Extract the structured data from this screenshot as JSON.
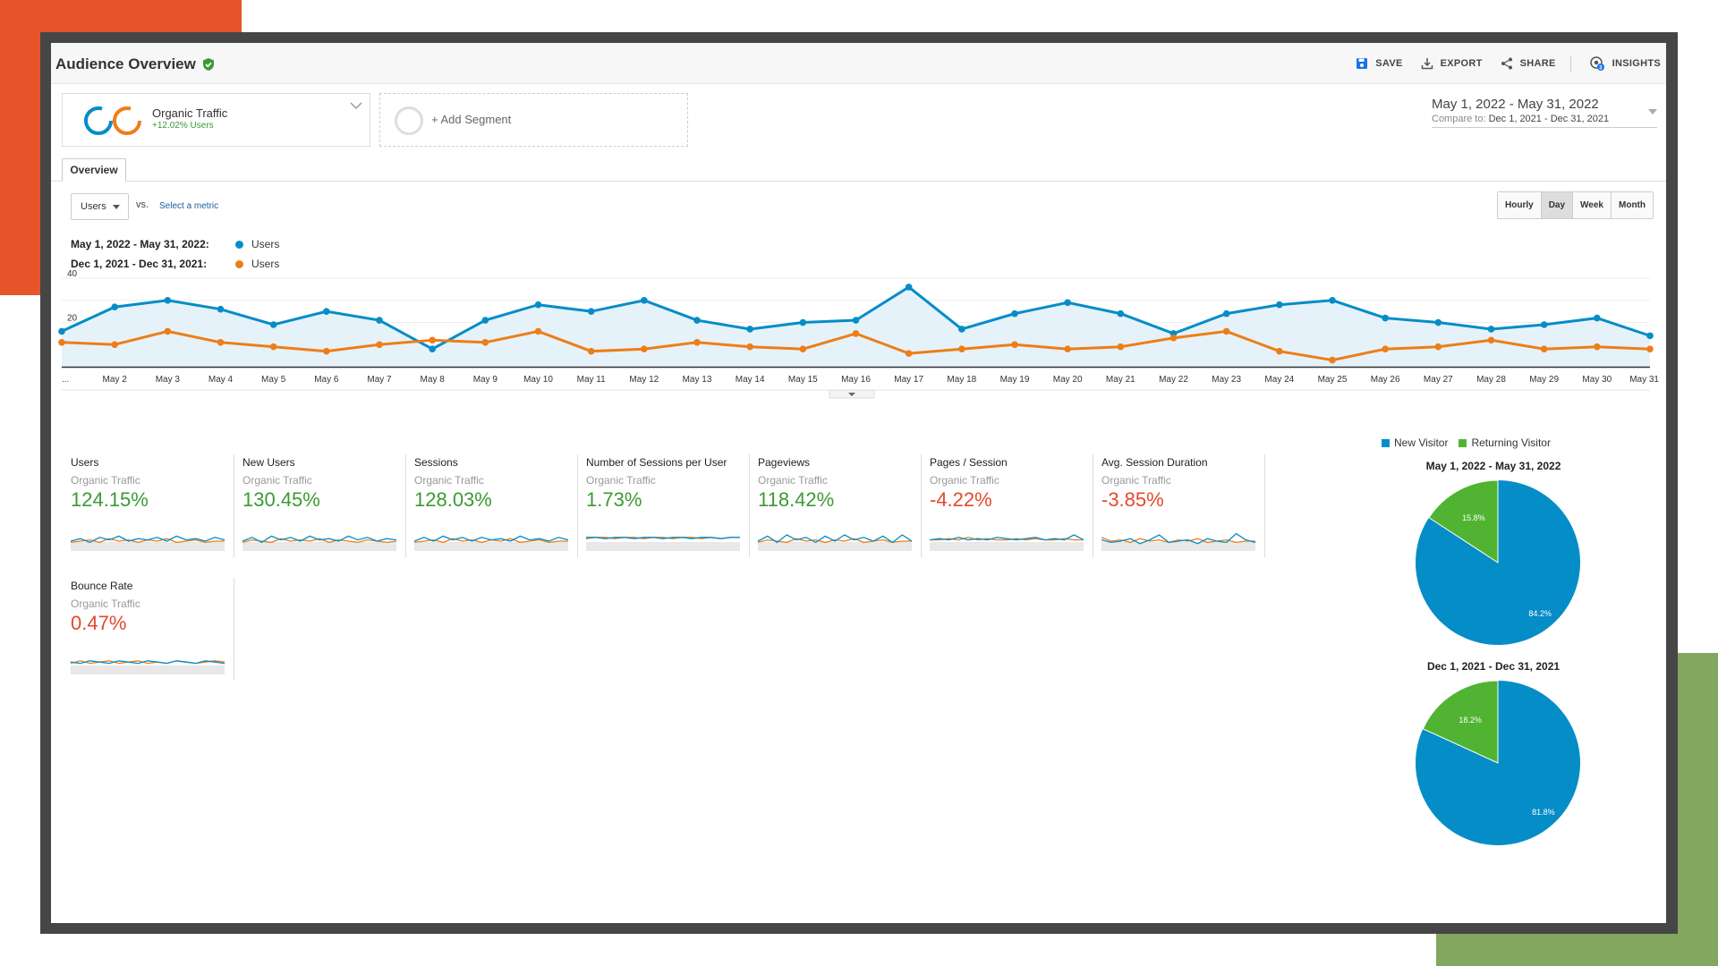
{
  "header": {
    "title": "Audience Overview",
    "actions": {
      "save": "SAVE",
      "export": "EXPORT",
      "share": "SHARE",
      "insights": "INSIGHTS"
    }
  },
  "segment": {
    "name": "Organic Traffic",
    "delta": "+12.02% Users",
    "add_label": "+ Add Segment"
  },
  "date_range": {
    "main": "May 1, 2022 - May 31, 2022",
    "compare_label": "Compare to:",
    "compare_value": "Dec 1, 2021 - Dec 31, 2021"
  },
  "tabs": {
    "overview": "Overview"
  },
  "controls": {
    "metric": "Users",
    "vs": "vs.",
    "select_metric": "Select a metric",
    "time_buttons": [
      "Hourly",
      "Day",
      "Week",
      "Month"
    ],
    "active_time": "Day"
  },
  "legend": [
    {
      "label": "May 1, 2022 - May 31, 2022:",
      "series": "Users",
      "color": "#058dc7"
    },
    {
      "label": "Dec 1, 2021 - Dec 31, 2021:",
      "series": "Users",
      "color": "#ed7e17"
    }
  ],
  "chart_data": {
    "type": "line",
    "y_ticks": [
      "40",
      "20"
    ],
    "ylim": [
      0,
      40
    ],
    "x": [
      "...",
      "May 2",
      "May 3",
      "May 4",
      "May 5",
      "May 6",
      "May 7",
      "May 8",
      "May 9",
      "May 10",
      "May 11",
      "May 12",
      "May 13",
      "May 14",
      "May 15",
      "May 16",
      "May 17",
      "May 18",
      "May 19",
      "May 20",
      "May 21",
      "May 22",
      "May 23",
      "May 24",
      "May 25",
      "May 26",
      "May 27",
      "May 28",
      "May 29",
      "May 30",
      "May 31"
    ],
    "series": [
      {
        "name": "Users",
        "period": "May 1, 2022 - May 31, 2022",
        "color": "#058dc7",
        "values": [
          16,
          27,
          30,
          26,
          19,
          25,
          21,
          8,
          21,
          28,
          25,
          30,
          21,
          17,
          20,
          21,
          36,
          17,
          24,
          29,
          24,
          15,
          24,
          28,
          30,
          22,
          20,
          17,
          19,
          22,
          14
        ]
      },
      {
        "name": "Users",
        "period": "Dec 1, 2021 - Dec 31, 2021",
        "color": "#ed7e17",
        "values": [
          11,
          10,
          16,
          11,
          9,
          7,
          10,
          12,
          11,
          16,
          7,
          8,
          11,
          9,
          8,
          15,
          6,
          8,
          10,
          8,
          9,
          13,
          16,
          7,
          3,
          8,
          9,
          12,
          8,
          9,
          8
        ]
      }
    ]
  },
  "tiles": [
    {
      "name": "Users",
      "segment": "Organic Traffic",
      "value": "124.15%",
      "trend": "pos"
    },
    {
      "name": "New Users",
      "segment": "Organic Traffic",
      "value": "130.45%",
      "trend": "pos"
    },
    {
      "name": "Sessions",
      "segment": "Organic Traffic",
      "value": "128.03%",
      "trend": "pos"
    },
    {
      "name": "Number of Sessions per User",
      "segment": "Organic Traffic",
      "value": "1.73%",
      "trend": "pos"
    },
    {
      "name": "Pageviews",
      "segment": "Organic Traffic",
      "value": "118.42%",
      "trend": "pos"
    },
    {
      "name": "Pages / Session",
      "segment": "Organic Traffic",
      "value": "-4.22%",
      "trend": "neg"
    },
    {
      "name": "Avg. Session Duration",
      "segment": "Organic Traffic",
      "value": "-3.85%",
      "trend": "neg"
    },
    {
      "name": "Bounce Rate",
      "segment": "Organic Traffic",
      "value": "0.47%",
      "trend": "neg"
    }
  ],
  "pies": {
    "legend": [
      {
        "label": "New Visitor",
        "color": "#058dc7"
      },
      {
        "label": "Returning Visitor",
        "color": "#50b432"
      }
    ],
    "charts": [
      {
        "title": "May 1, 2022 - May 31, 2022",
        "new_pct": 84.2,
        "returning_pct": 15.8,
        "new_label": "84.2%",
        "returning_label": "15.8%"
      },
      {
        "title": "Dec 1, 2021 - Dec 31, 2021",
        "new_pct": 81.8,
        "returning_pct": 18.2,
        "new_label": "81.8%",
        "returning_label": "18.2%"
      }
    ]
  }
}
